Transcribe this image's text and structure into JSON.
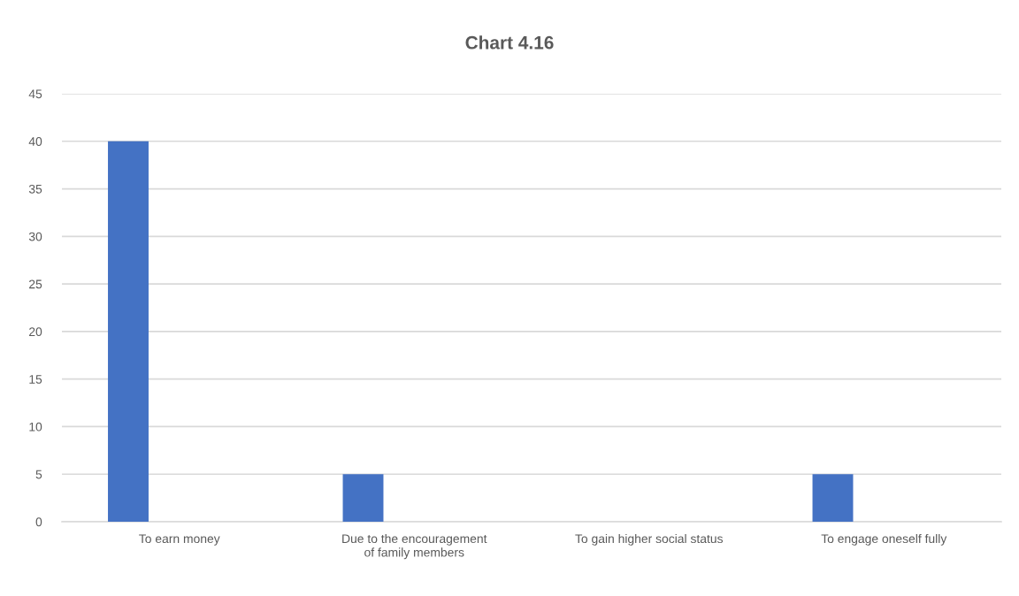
{
  "chart_data": {
    "type": "bar",
    "title": "Chart 4.16",
    "categories": [
      "To earn money",
      "Due to the encouragement\nof family members",
      "To gain higher social status",
      "To engage oneself fully"
    ],
    "values": [
      40,
      5,
      0,
      5
    ],
    "color": "#4472c4",
    "ylim": [
      0,
      45
    ],
    "yticks": [
      0,
      5,
      10,
      15,
      20,
      25,
      30,
      35,
      40,
      45
    ],
    "grid": "y"
  }
}
